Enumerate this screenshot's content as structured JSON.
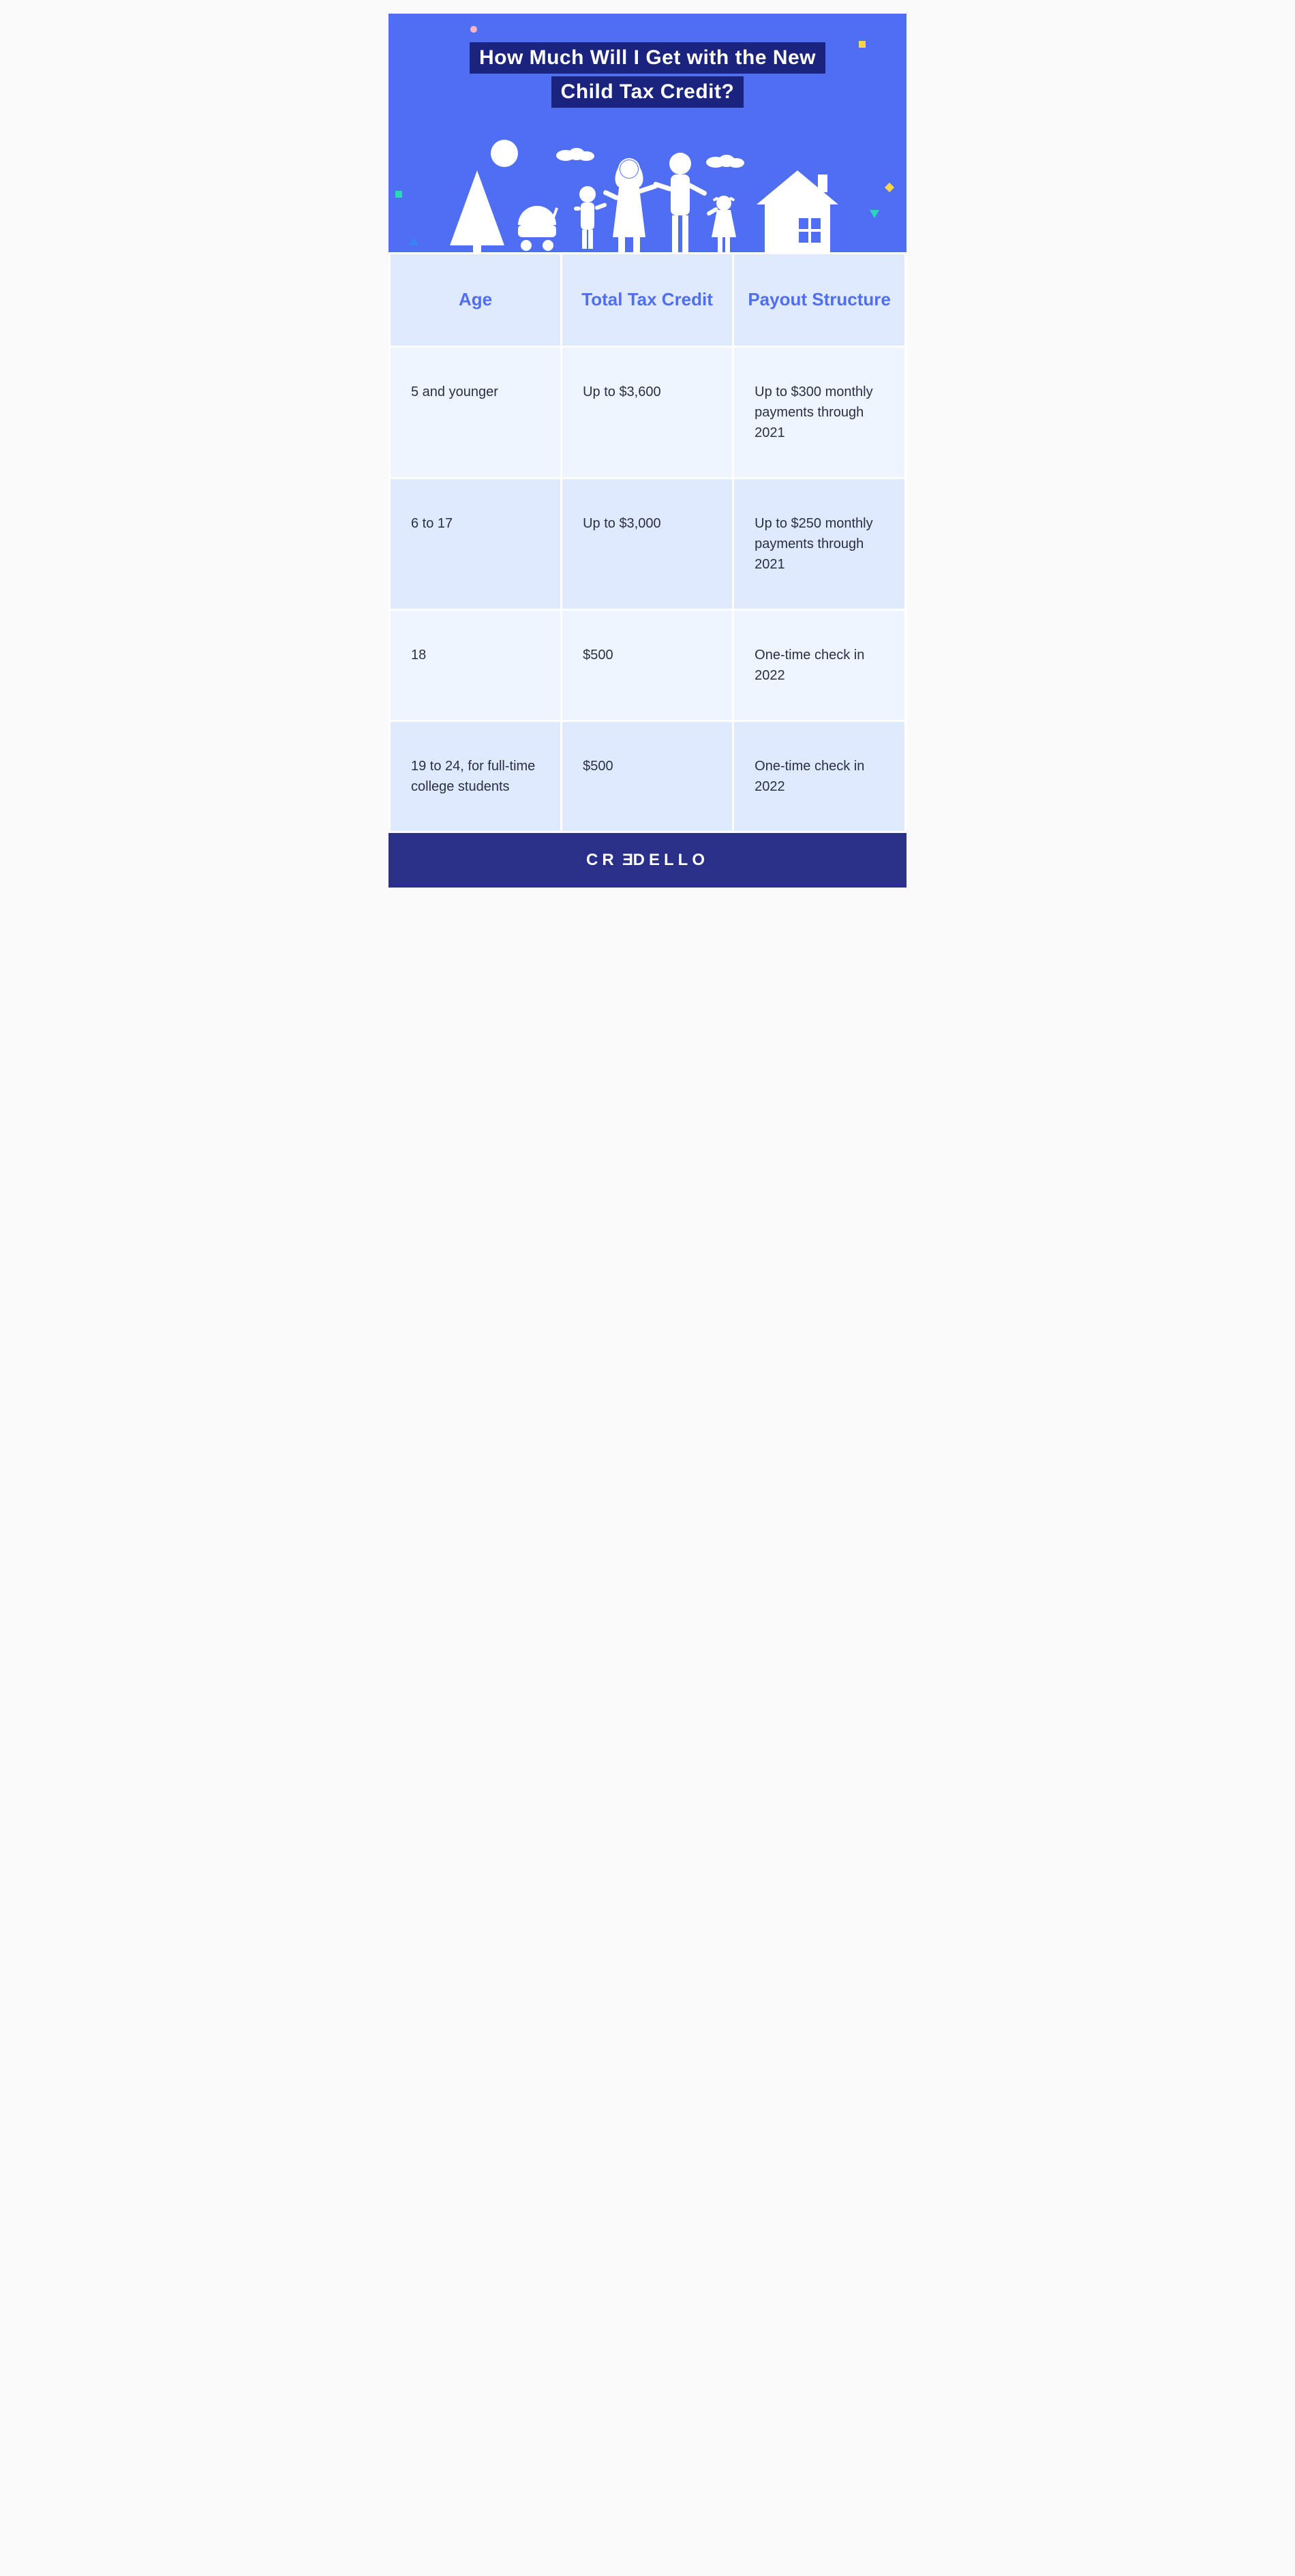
{
  "colors": {
    "hero_bg": "#4f6ef2",
    "title_bg": "#1a237e",
    "title_text": "#ffffff",
    "table_header_bg": "#dfeaff",
    "table_header_text": "#4f6ef2",
    "table_row_odd": "#eff5ff",
    "table_row_even": "#dfeaff",
    "table_text": "#2a2f45",
    "footer_bg": "#2a2f8a",
    "footer_text": "#ffffff",
    "illustration_fill": "#ffffff",
    "confetti_pink": "#ffb3c1",
    "confetti_teal": "#2dd4bf",
    "confetti_yellow": "#fcd34d",
    "confetti_blue": "#3b82f6"
  },
  "typography": {
    "title_fontsize": 30,
    "header_fontsize": 26,
    "body_fontsize": 20,
    "footer_fontsize": 24
  },
  "hero": {
    "title_line1": "How Much Will I Get with the New",
    "title_line2": "Child Tax Credit?"
  },
  "table": {
    "columns": [
      "Age",
      "Total Tax Credit",
      "Payout Structure"
    ],
    "rows": [
      [
        "5 and younger",
        "Up to $3,600",
        "Up to $300 monthly payments through 2021"
      ],
      [
        "6 to 17",
        "Up to $3,000",
        "Up to $250 monthly payments through 2021"
      ],
      [
        "18",
        "$500",
        "One-time check in 2022"
      ],
      [
        "19 to 24, for full-time college students",
        "$500",
        "One-time check in 2022"
      ]
    ],
    "col_widths": [
      "33.3%",
      "33.3%",
      "33.4%"
    ]
  },
  "footer": {
    "brand": "CREDELLO"
  }
}
